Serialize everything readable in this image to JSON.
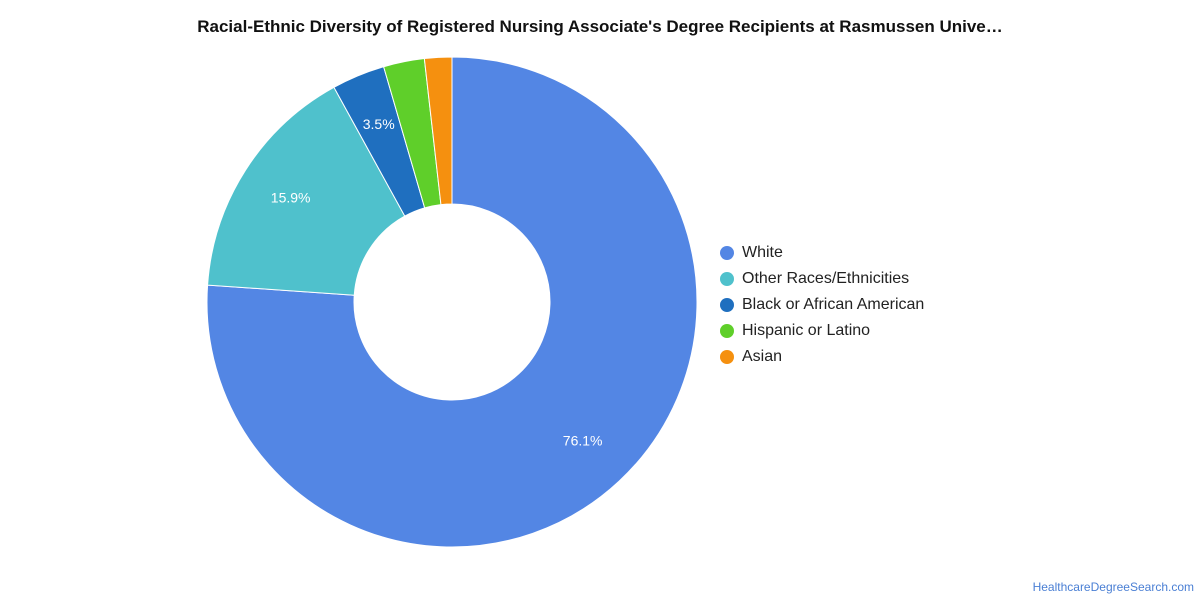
{
  "chart_data": {
    "type": "pie",
    "title": "Racial-Ethnic Diversity of Registered Nursing Associate's Degree Recipients at Rasmussen Unive…",
    "donut": true,
    "legend_position": "right",
    "slices": [
      {
        "name": "White",
        "value": 76.1,
        "color": "#5386e4",
        "label": "76.1%"
      },
      {
        "name": "Other Races/Ethnicities",
        "value": 15.9,
        "color": "#4fc1cc",
        "label": "15.9%"
      },
      {
        "name": "Black or African American",
        "value": 3.5,
        "color": "#1f6fbf",
        "label": "3.5%"
      },
      {
        "name": "Hispanic or Latino",
        "value": 2.7,
        "color": "#5fcf2a",
        "label": ""
      },
      {
        "name": "Asian",
        "value": 1.8,
        "color": "#f5900f",
        "label": ""
      }
    ]
  },
  "footer": {
    "source": "HealthcareDegreeSearch.com"
  }
}
